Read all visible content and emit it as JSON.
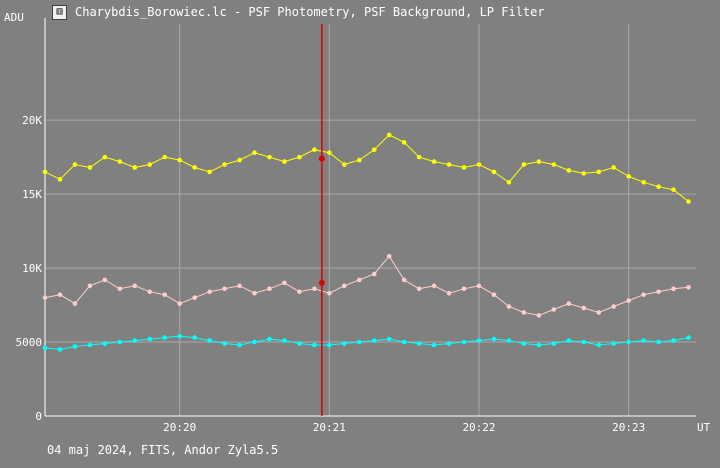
{
  "window": {
    "title": "Charybdis_Borowiec.lc - PSF Photometry, PSF Background, LP Filter",
    "icon": "chart-window-icon"
  },
  "footer": {
    "text": "04 maj 2024, FITS, Andor Zyla5.5"
  },
  "colors": {
    "background": "#808080",
    "grid": "#a8a8a8",
    "axis": "#ffffff",
    "text": "#ffffff",
    "cursor": "#dd0000"
  },
  "chart_data": {
    "type": "scatter",
    "ylabel": "ADU",
    "xlabel": "UT",
    "ylim": [
      0,
      26500
    ],
    "xlim": [
      19.1,
      23.45
    ],
    "yticks": [
      {
        "value": 0,
        "label": "0"
      },
      {
        "value": 5000,
        "label": "5000"
      },
      {
        "value": 10000,
        "label": "10K"
      },
      {
        "value": 15000,
        "label": "15K"
      },
      {
        "value": 20000,
        "label": "20K"
      }
    ],
    "xticks": [
      {
        "value": 20,
        "label": "20:20"
      },
      {
        "value": 21,
        "label": "20:21"
      },
      {
        "value": 22,
        "label": "20:22"
      },
      {
        "value": 23,
        "label": "20:23"
      }
    ],
    "cursor_x": 20.95,
    "series": [
      {
        "color": "#ffff00",
        "x": [
          19.1,
          19.2,
          19.3,
          19.4,
          19.5,
          19.6,
          19.7,
          19.8,
          19.9,
          20.0,
          20.1,
          20.2,
          20.3,
          20.4,
          20.5,
          20.6,
          20.7,
          20.8,
          20.9,
          21.0,
          21.1,
          21.2,
          21.3,
          21.4,
          21.5,
          21.6,
          21.7,
          21.8,
          21.9,
          22.0,
          22.1,
          22.2,
          22.3,
          22.4,
          22.5,
          22.6,
          22.7,
          22.8,
          22.9,
          23.0,
          23.1,
          23.2,
          23.3,
          23.4
        ],
        "y": [
          16500,
          16000,
          17000,
          16800,
          17500,
          17200,
          16800,
          17000,
          17500,
          17300,
          16800,
          16500,
          17000,
          17300,
          17800,
          17500,
          17200,
          17500,
          18000,
          17800,
          17000,
          17300,
          18000,
          19000,
          18500,
          17500,
          17200,
          17000,
          16800,
          17000,
          16500,
          15800,
          17000,
          17200,
          17000,
          16600,
          16400,
          16500,
          16800,
          16200,
          15800,
          15500,
          15300,
          14500
        ],
        "highlight": [
          20.95,
          17400
        ]
      },
      {
        "color": "#ffcccc",
        "x": [
          19.1,
          19.2,
          19.3,
          19.4,
          19.5,
          19.6,
          19.7,
          19.8,
          19.9,
          20.0,
          20.1,
          20.2,
          20.3,
          20.4,
          20.5,
          20.6,
          20.7,
          20.8,
          20.9,
          21.0,
          21.1,
          21.2,
          21.3,
          21.4,
          21.5,
          21.6,
          21.7,
          21.8,
          21.9,
          22.0,
          22.1,
          22.2,
          22.3,
          22.4,
          22.5,
          22.6,
          22.7,
          22.8,
          22.9,
          23.0,
          23.1,
          23.2,
          23.3,
          23.4
        ],
        "y": [
          8000,
          8200,
          7600,
          8800,
          9200,
          8600,
          8800,
          8400,
          8200,
          7600,
          8000,
          8400,
          8600,
          8800,
          8300,
          8600,
          9000,
          8400,
          8600,
          8300,
          8800,
          9200,
          9600,
          10800,
          9200,
          8600,
          8800,
          8300,
          8600,
          8800,
          8200,
          7400,
          7000,
          6800,
          7200,
          7600,
          7300,
          7000,
          7400,
          7800,
          8200,
          8400,
          8600,
          8700
        ],
        "highlight": [
          20.95,
          9000
        ]
      },
      {
        "color": "#00ffff",
        "x": [
          19.1,
          19.2,
          19.3,
          19.4,
          19.5,
          19.6,
          19.7,
          19.8,
          19.9,
          20.0,
          20.1,
          20.2,
          20.3,
          20.4,
          20.5,
          20.6,
          20.7,
          20.8,
          20.9,
          21.0,
          21.1,
          21.2,
          21.3,
          21.4,
          21.5,
          21.6,
          21.7,
          21.8,
          21.9,
          22.0,
          22.1,
          22.2,
          22.3,
          22.4,
          22.5,
          22.6,
          22.7,
          22.8,
          22.9,
          23.0,
          23.1,
          23.2,
          23.3,
          23.4
        ],
        "y": [
          4600,
          4500,
          4700,
          4800,
          4900,
          5000,
          5100,
          5200,
          5300,
          5400,
          5300,
          5100,
          4900,
          4800,
          5000,
          5200,
          5100,
          4900,
          4800,
          4800,
          4900,
          5000,
          5100,
          5200,
          5000,
          4900,
          4800,
          4900,
          5000,
          5100,
          5200,
          5100,
          4900,
          4800,
          4900,
          5100,
          5000,
          4800,
          4900,
          5000,
          5100,
          5000,
          5100,
          5300
        ]
      }
    ]
  }
}
